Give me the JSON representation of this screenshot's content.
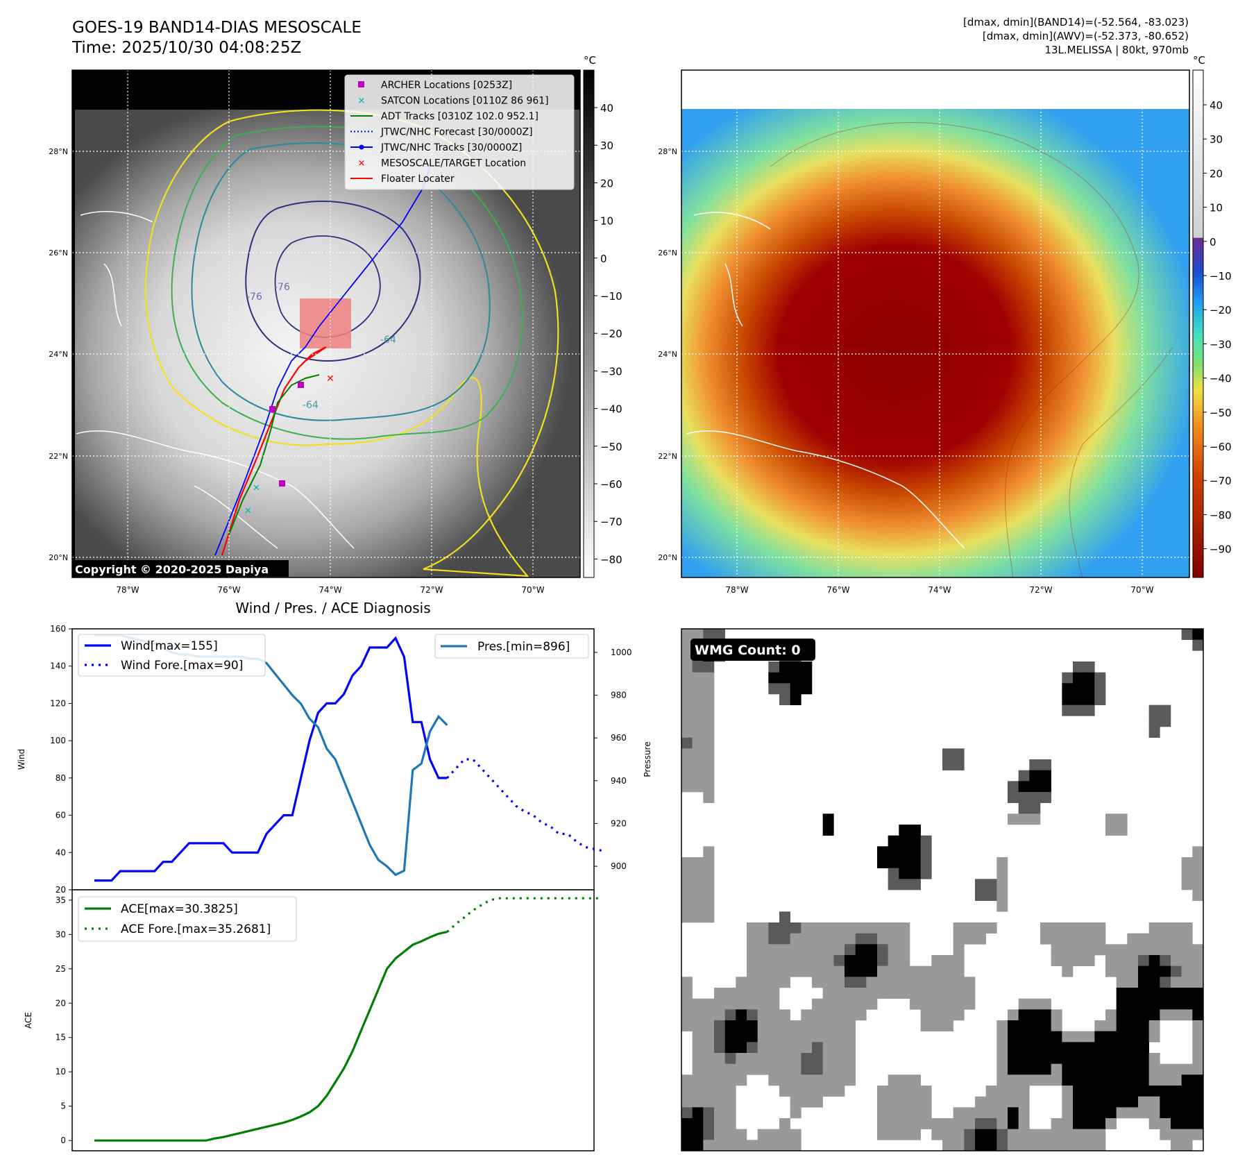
{
  "header": {
    "title_line1": "GOES-19 BAND14-DIAS MESOSCALE",
    "title_line2": "Time: 2025/10/30 04:08:25Z",
    "info_line1": "[dmax, dmin](BAND14)=(-52.564, -83.023)",
    "info_line2": "[dmax, dmin](AWV)=(-52.373, -80.652)",
    "info_line3": "13L.MELISSA | 80kt, 970mb",
    "copyright": "Copyright © 2020-2025 Dapiya"
  },
  "map": {
    "lat_labels": [
      "28°N",
      "26°N",
      "24°N",
      "22°N",
      "20°N"
    ],
    "lon_labels": [
      "78°W",
      "76°W",
      "74°W",
      "72°W",
      "70°W"
    ],
    "contour_labels": [
      "-76",
      "-76",
      "-64",
      "-64"
    ],
    "legend": [
      {
        "label": "ARCHER Locations [0253Z]",
        "color": "#c000c0",
        "marker": "square"
      },
      {
        "label": "SATCON Locations [0110Z 86 961]",
        "color": "#00b4b4",
        "marker": "x"
      },
      {
        "label": "ADT Tracks [0310Z 102.0 952.1]",
        "color": "#008000",
        "marker": "line"
      },
      {
        "label": "JTWC/NHC Forecast [30/0000Z]",
        "color": "#0000ff",
        "marker": "dotted"
      },
      {
        "label": "JTWC/NHC Tracks [30/0000Z]",
        "color": "#0000ff",
        "marker": "line-dot"
      },
      {
        "label": "MESOSCALE/TARGET Location",
        "color": "#ff0000",
        "marker": "x"
      },
      {
        "label": "Floater Locater",
        "color": "#ff0000",
        "marker": "line"
      }
    ]
  },
  "colorbars": {
    "unit": "°C",
    "left_ticks": [
      "40",
      "30",
      "20",
      "10",
      "0",
      "−10",
      "−20",
      "−30",
      "−40",
      "−50",
      "−60",
      "−70",
      "−80"
    ],
    "right_ticks": [
      "40",
      "30",
      "20",
      "10",
      "0",
      "−10",
      "−20",
      "−30",
      "−40",
      "−50",
      "−60",
      "−70",
      "−80",
      "−90"
    ]
  },
  "wmg": {
    "label": "WMG Count: 0"
  },
  "chart_data": [
    {
      "type": "line",
      "title": "Wind / Pres. / ACE Diagnosis",
      "ylabel": "Wind",
      "ylabel_right": "Pressure",
      "ylim": [
        20,
        160
      ],
      "ylim_right": [
        889,
        1011
      ],
      "yticks": [
        "160",
        "140",
        "120",
        "100",
        "80",
        "60",
        "40",
        "20"
      ],
      "yticks_right": [
        "1000",
        "980",
        "960",
        "940",
        "920",
        "900"
      ],
      "legend_left": [
        "Wind[max=155]",
        "Wind Fore.[max=90]"
      ],
      "legend_right": [
        "Pres.[min=896]"
      ],
      "series": [
        {
          "name": "Wind[max=155]",
          "color": "#0000ff",
          "style": "solid",
          "values": [
            25,
            25,
            25,
            30,
            30,
            30,
            30,
            30,
            35,
            35,
            40,
            45,
            45,
            45,
            45,
            45,
            40,
            40,
            40,
            40,
            50,
            55,
            60,
            60,
            80,
            100,
            115,
            120,
            120,
            125,
            135,
            140,
            150,
            150,
            150,
            155,
            145,
            110,
            110,
            90,
            80,
            80
          ]
        },
        {
          "name": "Wind Fore.[max=90]",
          "color": "#0000ff",
          "style": "dotted",
          "values": [
            80,
            85,
            90,
            90,
            85,
            80,
            75,
            70,
            65,
            62,
            60,
            56,
            54,
            50,
            50,
            46,
            43,
            42,
            41
          ]
        },
        {
          "name": "Pres.[min=896]",
          "color": "#1f77b4",
          "style": "solid",
          "axis": "right",
          "values": [
            1008,
            1008,
            1008,
            1008,
            1007,
            1006,
            1005,
            1004,
            1002,
            1000,
            999,
            999,
            998,
            998,
            998,
            998,
            998,
            998,
            997,
            997,
            995,
            990,
            985,
            980,
            976,
            969,
            965,
            955,
            950,
            940,
            930,
            920,
            910,
            903,
            900,
            896,
            898,
            945,
            948,
            963,
            970,
            966
          ]
        }
      ]
    },
    {
      "type": "line",
      "ylabel": "ACE",
      "ylim": [
        -1.5,
        36.5
      ],
      "yticks": [
        "35",
        "30",
        "25",
        "20",
        "15",
        "10",
        "5",
        "0"
      ],
      "legend": [
        "ACE[max=30.3825]",
        "ACE Fore.[max=35.2681]"
      ],
      "series": [
        {
          "name": "ACE[max=30.3825]",
          "color": "#008000",
          "style": "solid",
          "values": [
            0,
            0,
            0,
            0,
            0,
            0,
            0,
            0,
            0,
            0,
            0,
            0,
            0,
            0,
            0.3,
            0.5,
            0.8,
            1.1,
            1.4,
            1.7,
            2.0,
            2.3,
            2.6,
            3.0,
            3.5,
            4.1,
            5.0,
            6.5,
            8.5,
            10.5,
            13,
            16,
            19,
            22,
            25,
            26.5,
            27.5,
            28.5,
            29,
            29.6,
            30.1,
            30.38
          ]
        },
        {
          "name": "ACE Fore.[max=35.2681]",
          "color": "#008000",
          "style": "dotted",
          "values": [
            30.38,
            31.5,
            32.5,
            33.5,
            34.3,
            35.0,
            35.27,
            35.27,
            35.27,
            35.27,
            35.27,
            35.27,
            35.27,
            35.27,
            35.27,
            35.27,
            35.27,
            35.27,
            35.27
          ]
        }
      ]
    }
  ]
}
